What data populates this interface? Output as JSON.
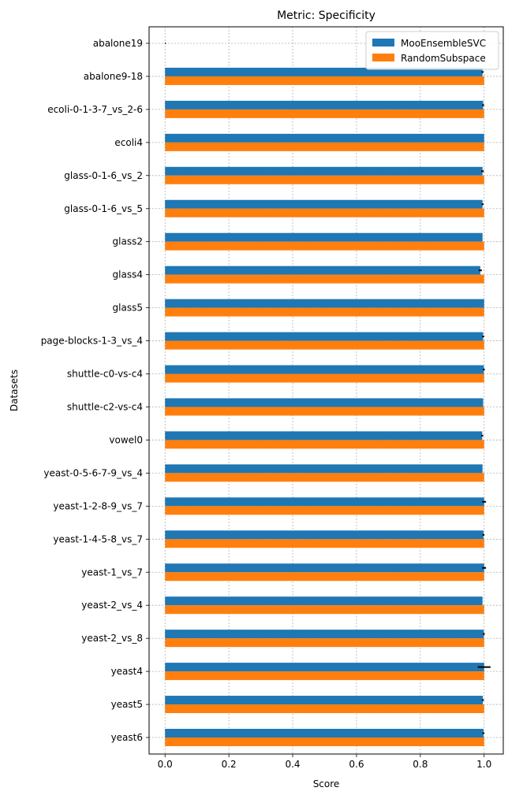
{
  "chart_data": {
    "type": "bar",
    "orientation": "horizontal",
    "title": "Metric: Specificity",
    "xlabel": "Score",
    "ylabel": "Datasets",
    "xlim": [
      -0.05,
      1.06
    ],
    "xticks": [
      0.0,
      0.2,
      0.4,
      0.6,
      0.8,
      1.0
    ],
    "xtick_labels": [
      "0.0",
      "0.2",
      "0.4",
      "0.6",
      "0.8",
      "1.0"
    ],
    "grid": true,
    "legend_position": "top-right",
    "categories": [
      "abalone19",
      "abalone9-18",
      "ecoli-0-1-3-7_vs_2-6",
      "ecoli4",
      "glass-0-1-6_vs_2",
      "glass-0-1-6_vs_5",
      "glass2",
      "glass4",
      "glass5",
      "page-blocks-1-3_vs_4",
      "shuttle-c0-vs-c4",
      "shuttle-c2-vs-c4",
      "vowel0",
      "yeast-0-5-6-7-9_vs_4",
      "yeast-1-2-8-9_vs_7",
      "yeast-1-4-5-8_vs_7",
      "yeast-1_vs_7",
      "yeast-2_vs_4",
      "yeast-2_vs_8",
      "yeast4",
      "yeast5",
      "yeast6"
    ],
    "series": [
      {
        "name": "MooEnsembleSVC",
        "color": "#1f77b4",
        "values": [
          0.0,
          0.995,
          0.997,
          1.0,
          0.995,
          0.995,
          0.995,
          0.988,
          1.0,
          0.997,
          0.999,
          0.997,
          0.994,
          0.995,
          1.0,
          0.998,
          1.0,
          0.995,
          0.999,
          1.0,
          0.996,
          0.998
        ],
        "errors": [
          0.0,
          0.003,
          0.003,
          0.0,
          0.004,
          0.003,
          0.0,
          0.005,
          0.0,
          0.003,
          0.003,
          0.0,
          0.003,
          0.0,
          0.006,
          0.003,
          0.006,
          0.0,
          0.003,
          0.02,
          0.003,
          0.003
        ]
      },
      {
        "name": "RandomSubspace",
        "color": "#ff7f0e",
        "values": [
          0.0,
          1.0,
          1.0,
          1.0,
          1.0,
          1.0,
          1.0,
          1.0,
          1.0,
          1.0,
          1.0,
          1.0,
          1.0,
          1.0,
          1.0,
          1.0,
          1.0,
          1.0,
          1.0,
          1.0,
          1.0,
          1.0
        ],
        "errors": [
          0.0,
          0.0,
          0.0,
          0.0,
          0.0,
          0.0,
          0.0,
          0.0,
          0.0,
          0.0,
          0.0,
          0.0,
          0.0,
          0.0,
          0.0,
          0.0,
          0.0,
          0.0,
          0.0,
          0.0,
          0.0,
          0.0
        ]
      }
    ]
  }
}
